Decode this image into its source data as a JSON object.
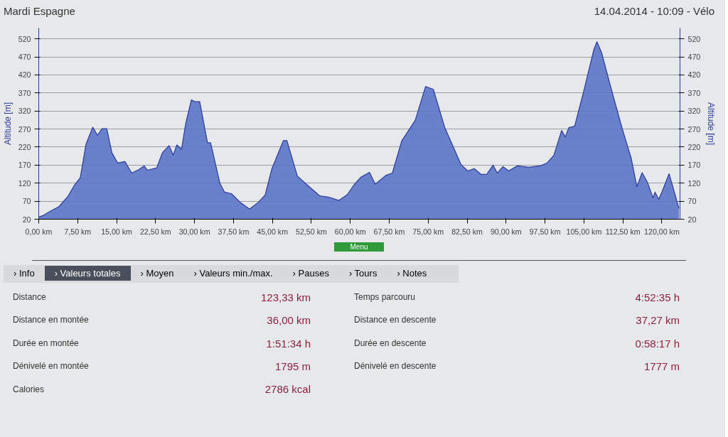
{
  "chart_data": {
    "type": "area",
    "title": "Mardi Espagne",
    "ylabel": "Altitude [m]",
    "y2label": "Altitude [m]",
    "x": [
      0,
      0.8,
      2.1,
      3.9,
      5.6,
      6.9,
      8.0,
      9.1,
      10.4,
      11.3,
      12.2,
      13.1,
      14.1,
      15.2,
      16.6,
      17.9,
      19.2,
      20.3,
      20.9,
      22.7,
      23.8,
      25.1,
      25.9,
      26.6,
      27.5,
      28.3,
      29.4,
      30.1,
      31.0,
      32.5,
      33.1,
      34.9,
      35.8,
      37.1,
      38.8,
      40.6,
      42.3,
      43.6,
      44.9,
      47.1,
      47.8,
      49.8,
      52.0,
      54.1,
      55.9,
      57.8,
      59.4,
      60.7,
      62.0,
      63.7,
      64.8,
      66.8,
      68.1,
      69.9,
      72.5,
      74.5,
      76.0,
      78.2,
      81.3,
      82.6,
      83.9,
      85.2,
      86.3,
      87.5,
      88.3,
      89.4,
      90.5,
      92.2,
      94.4,
      96.6,
      97.9,
      99.2,
      100.7,
      101.4,
      102.1,
      103.2,
      104.9,
      106.9,
      107.5,
      108.4,
      110.2,
      112.4,
      114.1,
      115.2,
      116.2,
      117.2,
      118.3,
      118.7,
      119.4,
      120.0,
      121.4,
      123.3
    ],
    "values": [
      26,
      30,
      41,
      55,
      83,
      115,
      135,
      228,
      275,
      253,
      271,
      271,
      204,
      176,
      180,
      148,
      157,
      168,
      156,
      162,
      204,
      224,
      198,
      226,
      214,
      285,
      351,
      346,
      346,
      232,
      232,
      119,
      95,
      91,
      67,
      48,
      67,
      87,
      160,
      238,
      238,
      140,
      111,
      85,
      81,
      72,
      88,
      115,
      136,
      150,
      117,
      141,
      148,
      237,
      294,
      388,
      380,
      274,
      172,
      154,
      160,
      144,
      145,
      170,
      148,
      166,
      154,
      168,
      164,
      168,
      176,
      197,
      266,
      248,
      274,
      278,
      372,
      490,
      512,
      482,
      384,
      270,
      189,
      110,
      149,
      123,
      79,
      95,
      75,
      95,
      146,
      50
    ],
    "color": "#5b74c8",
    "xlim": [
      0,
      123.5
    ],
    "xticks": [
      {
        "value": 0,
        "label": "0,00 km"
      },
      {
        "value": 7.5,
        "label": "7,50 km"
      },
      {
        "value": 15,
        "label": "15,00 km"
      },
      {
        "value": 22.5,
        "label": "22,50 km"
      },
      {
        "value": 30,
        "label": "30,00 km"
      },
      {
        "value": 37.5,
        "label": "37,50 km"
      },
      {
        "value": 45,
        "label": "45,00 km"
      },
      {
        "value": 52.5,
        "label": "52,50 km"
      },
      {
        "value": 60,
        "label": "60,00 km"
      },
      {
        "value": 67.5,
        "label": "67,50 km"
      },
      {
        "value": 75,
        "label": "75,00 km"
      },
      {
        "value": 82.5,
        "label": "82,50 km"
      },
      {
        "value": 90,
        "label": "90,00 km"
      },
      {
        "value": 97.5,
        "label": "97,50 km"
      },
      {
        "value": 105,
        "label": "105,00 km"
      },
      {
        "value": 112.5,
        "label": "112,50 km"
      },
      {
        "value": 120,
        "label": "120,00 km"
      }
    ],
    "ylim": [
      20,
      550
    ],
    "yticks": [
      20,
      70,
      120,
      170,
      220,
      270,
      320,
      370,
      420,
      470,
      520
    ],
    "y2lim": [
      20,
      550
    ],
    "y2ticks": [
      20,
      70,
      120,
      170,
      220,
      270,
      320,
      370,
      420,
      470,
      520
    ],
    "grid": "y",
    "annotations": [
      "14.04.2014 - 10:09 - Vélo",
      "Menu",
      "› Info",
      "› Valeurs totales",
      "› Moyen",
      "› Valeurs min./max.",
      "› Pauses",
      "› Tours",
      "› Notes",
      "Distance",
      "123,33 km",
      "Temps parcouru",
      "4:52:35 h",
      "Distance en montée",
      "36,00 km",
      "Distance en descente",
      "37,27 km",
      "Durée en montée",
      "1:51:34 h",
      "Durée en descente",
      "0:58:17 h",
      "Dénivelé en montée",
      "1795 m",
      "Dénivelé en descente",
      "1777 m",
      "Calories",
      "2786 kcal"
    ]
  }
}
